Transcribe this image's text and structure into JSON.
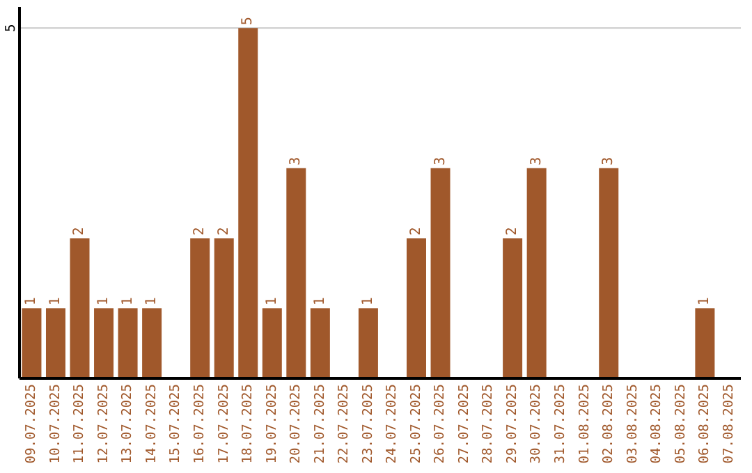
{
  "chart_data": {
    "type": "bar",
    "categories": [
      "09.07.2025",
      "10.07.2025",
      "11.07.2025",
      "12.07.2025",
      "13.07.2025",
      "14.07.2025",
      "15.07.2025",
      "16.07.2025",
      "17.07.2025",
      "18.07.2025",
      "19.07.2025",
      "20.07.2025",
      "21.07.2025",
      "22.07.2025",
      "23.07.2025",
      "24.07.2025",
      "25.07.2025",
      "26.07.2025",
      "27.07.2025",
      "28.07.2025",
      "29.07.2025",
      "30.07.2025",
      "31.07.2025",
      "01.08.2025",
      "02.08.2025",
      "03.08.2025",
      "04.08.2025",
      "05.08.2025",
      "06.08.2025",
      "07.08.2025"
    ],
    "values": [
      1,
      1,
      2,
      1,
      1,
      1,
      0,
      2,
      2,
      5,
      1,
      3,
      1,
      0,
      1,
      0,
      2,
      3,
      0,
      0,
      2,
      3,
      0,
      0,
      3,
      0,
      0,
      0,
      1,
      0
    ],
    "value_labels": [
      "1",
      "1",
      "2",
      "1",
      "1",
      "1",
      null,
      "2",
      "2",
      "5",
      "1",
      "3",
      "1",
      null,
      "1",
      null,
      "2",
      "3",
      null,
      null,
      "2",
      "3",
      null,
      null,
      "3",
      null,
      null,
      null,
      "1",
      null
    ],
    "color": "#a0582b",
    "ylim": [
      0,
      5.3
    ],
    "yticks": [
      5
    ],
    "grid": "y"
  }
}
